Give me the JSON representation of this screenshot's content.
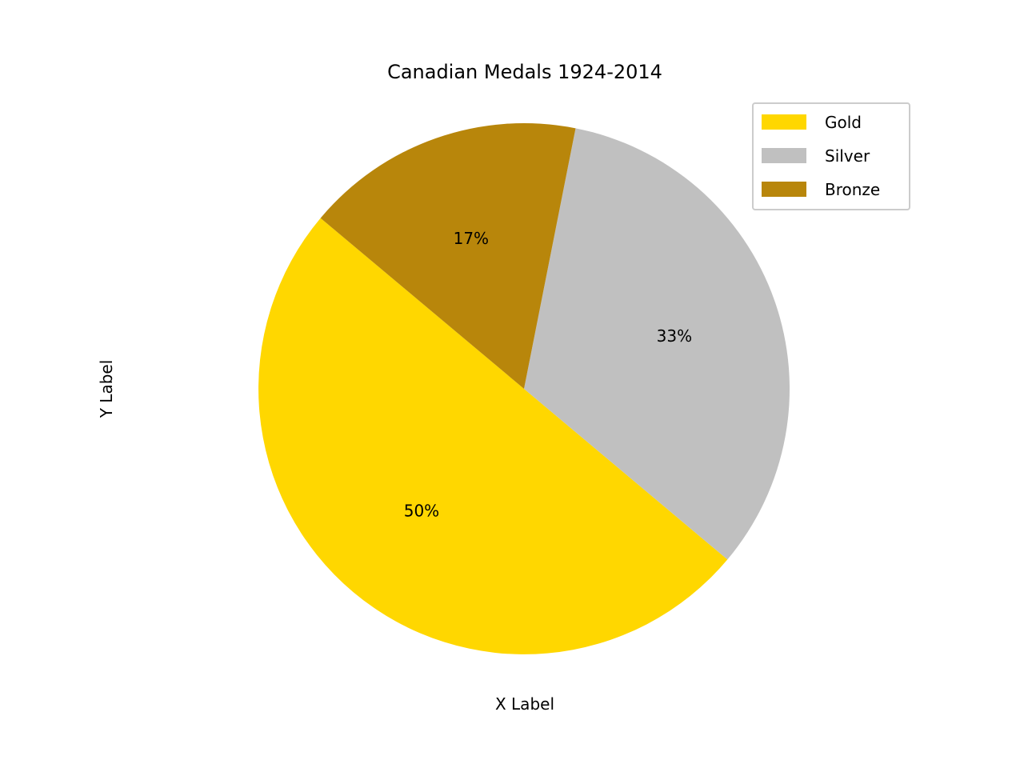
{
  "chart_data": {
    "type": "pie",
    "title": "Canadian Medals 1924-2014",
    "xlabel": "X Label",
    "ylabel": "Y Label",
    "labels": [
      "Gold",
      "Silver",
      "Bronze"
    ],
    "values": [
      50,
      33,
      17
    ],
    "value_labels": [
      "50%",
      "33%",
      "17%"
    ],
    "colors": [
      "#FFD700",
      "#C0C0C0",
      "#B8860B"
    ],
    "start_angle_deg": 140,
    "direction": "counterclockwise",
    "legend": {
      "placement": "upper-right",
      "entries": [
        "Gold",
        "Silver",
        "Bronze"
      ]
    }
  }
}
